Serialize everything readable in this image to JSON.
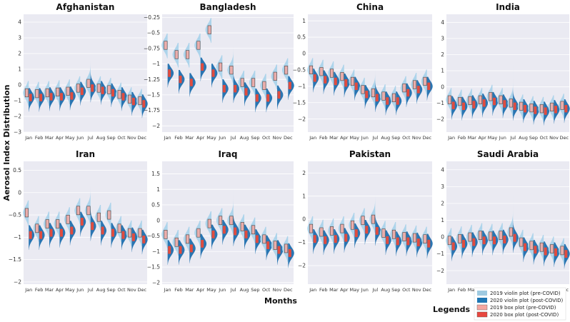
{
  "figure": {
    "ylabel": "Aerosol Index Distribution",
    "xlabel": "Months",
    "legend_title": "Legends",
    "legend": [
      {
        "label": "2019 violin plot (pre-COVID)",
        "color": "#9ecae1"
      },
      {
        "label": "2020 violin plot (post-COVID)",
        "color": "#1f77b4"
      },
      {
        "label": "2019 box plot (pre-COVID)",
        "color": "#f4a6a0"
      },
      {
        "label": "2020 box plot (post-COVID)",
        "color": "#e8473f"
      }
    ],
    "colors": {
      "panel_bg": "#eaeaf2",
      "v2019": "#a6d1ea",
      "v2020": "#1f6fae",
      "b2019": "#f4a6a0",
      "b2020": "#e04c3f"
    }
  },
  "chart_data": [
    {
      "type": "violin",
      "title": "Afghanistan",
      "categories": [
        "Jan",
        "Feb",
        "Mar",
        "Apr",
        "May",
        "Jun",
        "Jul",
        "Aug",
        "Sep",
        "Oct",
        "Nov",
        "Dec"
      ],
      "ylim": [
        -3,
        4.5
      ],
      "yticks": [
        -3,
        -2,
        -1,
        0,
        1,
        2,
        3,
        4
      ],
      "median_2019": [
        -0.5,
        -0.55,
        -0.5,
        -0.45,
        -0.4,
        -0.2,
        0.1,
        -0.2,
        -0.3,
        -0.6,
        -0.9,
        -1.0
      ],
      "median_2020": [
        -0.8,
        -0.8,
        -0.75,
        -0.75,
        -0.7,
        -0.4,
        -0.2,
        -0.35,
        -0.5,
        -0.75,
        -1.05,
        -1.2
      ]
    },
    {
      "type": "violin",
      "title": "Bangladesh",
      "categories": [
        "Jan",
        "Feb",
        "Mar",
        "Apr",
        "May",
        "Jun",
        "Jul",
        "Aug",
        "Sep",
        "Oct",
        "Nov",
        "Dec"
      ],
      "ylim": [
        -2.1,
        -0.2
      ],
      "yticks": [
        -2.0,
        -1.75,
        -1.5,
        -1.25,
        -1.0,
        -0.75,
        -0.5,
        -0.25
      ],
      "median_2019": [
        -0.7,
        -0.85,
        -0.85,
        -0.7,
        -0.45,
        -1.05,
        -1.1,
        -1.3,
        -1.3,
        -1.35,
        -1.2,
        -1.1
      ],
      "median_2020": [
        -1.15,
        -1.25,
        -1.3,
        -1.05,
        -1.15,
        -1.4,
        -1.4,
        -1.45,
        -1.55,
        -1.55,
        -1.5,
        -1.35
      ]
    },
    {
      "type": "violin",
      "title": "China",
      "categories": [
        "Jan",
        "Feb",
        "Mar",
        "Apr",
        "May",
        "Jun",
        "Jul",
        "Aug",
        "Sep",
        "Oct",
        "Nov",
        "Dec"
      ],
      "ylim": [
        -2.4,
        1.2
      ],
      "yticks": [
        -2.0,
        -1.5,
        -1.0,
        -0.5,
        0.0,
        0.5,
        1.0
      ],
      "median_2019": [
        -0.5,
        -0.55,
        -0.6,
        -0.7,
        -0.85,
        -1.1,
        -1.2,
        -1.3,
        -1.35,
        -1.05,
        -0.95,
        -0.85
      ],
      "median_2020": [
        -0.75,
        -0.8,
        -0.85,
        -0.9,
        -1.0,
        -1.25,
        -1.35,
        -1.45,
        -1.45,
        -1.2,
        -1.1,
        -1.0
      ]
    },
    {
      "type": "violin",
      "title": "India",
      "categories": [
        "Jan",
        "Feb",
        "Mar",
        "Apr",
        "May",
        "Jun",
        "Jul",
        "Aug",
        "Sep",
        "Oct",
        "Nov",
        "Dec"
      ],
      "ylim": [
        -2.8,
        4.5
      ],
      "yticks": [
        -2,
        -1,
        0,
        1,
        2,
        3,
        4
      ],
      "median_2019": [
        -0.8,
        -0.9,
        -0.85,
        -0.8,
        -0.6,
        -0.8,
        -1.0,
        -1.2,
        -1.3,
        -1.35,
        -1.25,
        -1.15
      ],
      "median_2020": [
        -1.15,
        -1.2,
        -1.1,
        -1.0,
        -0.9,
        -1.05,
        -1.2,
        -1.35,
        -1.45,
        -1.5,
        -1.4,
        -1.35
      ]
    },
    {
      "type": "violin",
      "title": "Iran",
      "categories": [
        "Jan",
        "Feb",
        "Mar",
        "Apr",
        "May",
        "Jun",
        "Jul",
        "Aug",
        "Sep",
        "Oct",
        "Nov",
        "Dec"
      ],
      "ylim": [
        -2.05,
        0.7
      ],
      "yticks": [
        -2.0,
        -1.5,
        -1.0,
        -0.5,
        0.0,
        0.5
      ],
      "median_2019": [
        -0.45,
        -0.8,
        -0.7,
        -0.7,
        -0.6,
        -0.4,
        -0.4,
        -0.55,
        -0.5,
        -0.8,
        -0.9,
        -0.9
      ],
      "median_2020": [
        -0.95,
        -0.95,
        -0.9,
        -0.9,
        -0.85,
        -0.65,
        -0.75,
        -0.85,
        -0.9,
        -0.95,
        -1.0,
        -1.05
      ]
    },
    {
      "type": "violin",
      "title": "Iraq",
      "categories": [
        "Jan",
        "Feb",
        "Mar",
        "Apr",
        "May",
        "Jun",
        "Jul",
        "Aug",
        "Sep",
        "Oct",
        "Nov",
        "Dec"
      ],
      "ylim": [
        -2.05,
        1.9
      ],
      "yticks": [
        -2.0,
        -1.5,
        -1.0,
        -0.5,
        0.0,
        0.5,
        1.0,
        1.5
      ],
      "median_2019": [
        -0.45,
        -0.7,
        -0.6,
        -0.4,
        -0.1,
        0.0,
        0.0,
        -0.2,
        -0.3,
        -0.6,
        -0.8,
        -0.9
      ],
      "median_2020": [
        -0.95,
        -0.95,
        -0.9,
        -0.75,
        -0.45,
        -0.3,
        -0.35,
        -0.45,
        -0.6,
        -0.8,
        -0.95,
        -1.05
      ]
    },
    {
      "type": "violin",
      "title": "Pakistan",
      "categories": [
        "Jan",
        "Feb",
        "Mar",
        "Apr",
        "May",
        "Jun",
        "Jul",
        "Aug",
        "Sep",
        "Oct",
        "Nov",
        "Dec"
      ],
      "ylim": [
        -2.8,
        2.5
      ],
      "yticks": [
        -2,
        -1,
        0,
        1,
        2
      ],
      "median_2019": [
        -0.4,
        -0.55,
        -0.5,
        -0.4,
        -0.25,
        -0.05,
        0.0,
        -0.6,
        -0.65,
        -0.75,
        -0.8,
        -0.85
      ],
      "median_2020": [
        -0.85,
        -0.9,
        -0.85,
        -0.8,
        -0.6,
        -0.45,
        -0.5,
        -0.9,
        -0.95,
        -0.95,
        -1.0,
        -1.05
      ]
    },
    {
      "type": "violin",
      "title": "Saudi Arabia",
      "categories": [
        "Jan",
        "Feb",
        "Mar",
        "Apr",
        "May",
        "Jun",
        "Jul",
        "Aug",
        "Sep",
        "Oct",
        "Nov",
        "Dec"
      ],
      "ylim": [
        -2.8,
        4.5
      ],
      "yticks": [
        -2,
        -1,
        0,
        1,
        2,
        3,
        4
      ],
      "median_2019": [
        -0.2,
        -0.1,
        0.0,
        0.1,
        0.05,
        0.1,
        0.3,
        -0.3,
        -0.5,
        -0.6,
        -0.7,
        -0.8
      ],
      "median_2020": [
        -0.55,
        -0.4,
        -0.3,
        -0.2,
        -0.2,
        -0.15,
        -0.05,
        -0.6,
        -0.75,
        -0.85,
        -0.9,
        -1.0
      ]
    }
  ]
}
